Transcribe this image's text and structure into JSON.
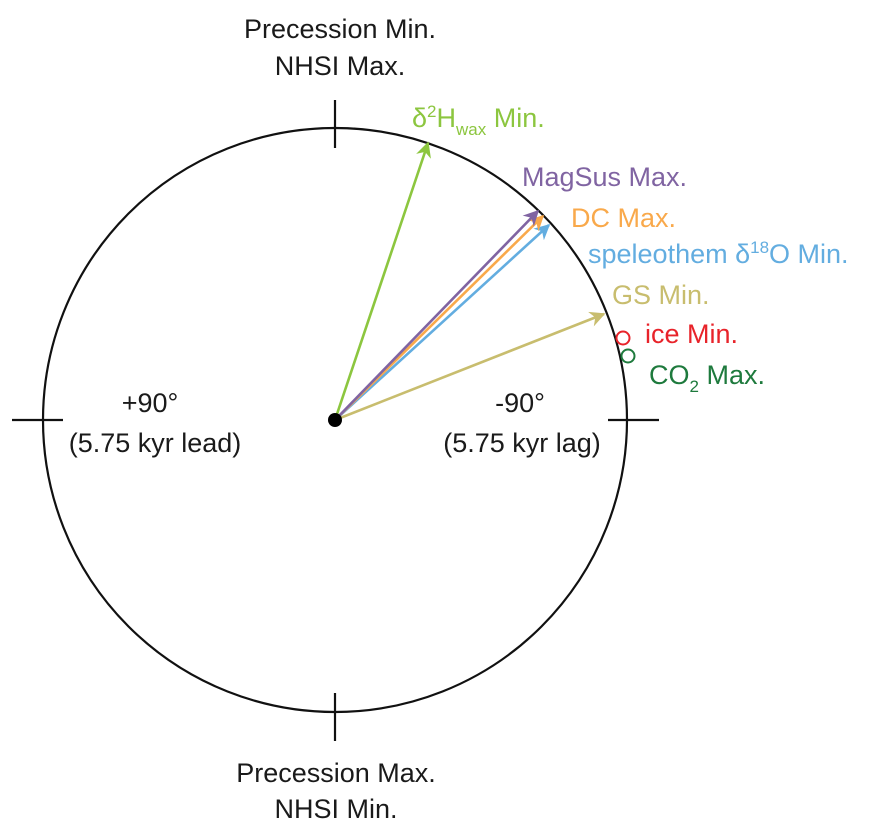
{
  "labels": {
    "top_line1": "Precession Min.",
    "top_line2": "NHSI Max.",
    "bottom_line1": "Precession Max.",
    "bottom_line2": "NHSI Min.",
    "left_angle": "+90°",
    "left_lead": "(5.75 kyr lead)",
    "right_angle": "-90°",
    "right_lag": "(5.75 kyr lag)"
  },
  "arrows": [
    {
      "id": "d2h",
      "label_pre": "δ",
      "label_sup": "2",
      "label_main": "H",
      "label_sub": "wax",
      "label_post": " Min.",
      "color": "#8cc63f"
    },
    {
      "id": "magsus",
      "label": "MagSus Max.",
      "color": "#8064a2"
    },
    {
      "id": "dc",
      "label": "DC Max.",
      "color": "#f9a94b"
    },
    {
      "id": "speleothem",
      "label_pre": "speleothem δ",
      "label_sup": "18",
      "label_post": "O Min.",
      "color": "#63ade0"
    },
    {
      "id": "gs",
      "label": "GS Min.",
      "color": "#c8bd6e"
    }
  ],
  "markers": [
    {
      "id": "ice",
      "label": "ice Min.",
      "color": "#e8232a"
    },
    {
      "id": "co2",
      "label_pre": "CO",
      "label_sub": "2",
      "label_post": " Max.",
      "color": "#1e7a3d"
    }
  ]
}
